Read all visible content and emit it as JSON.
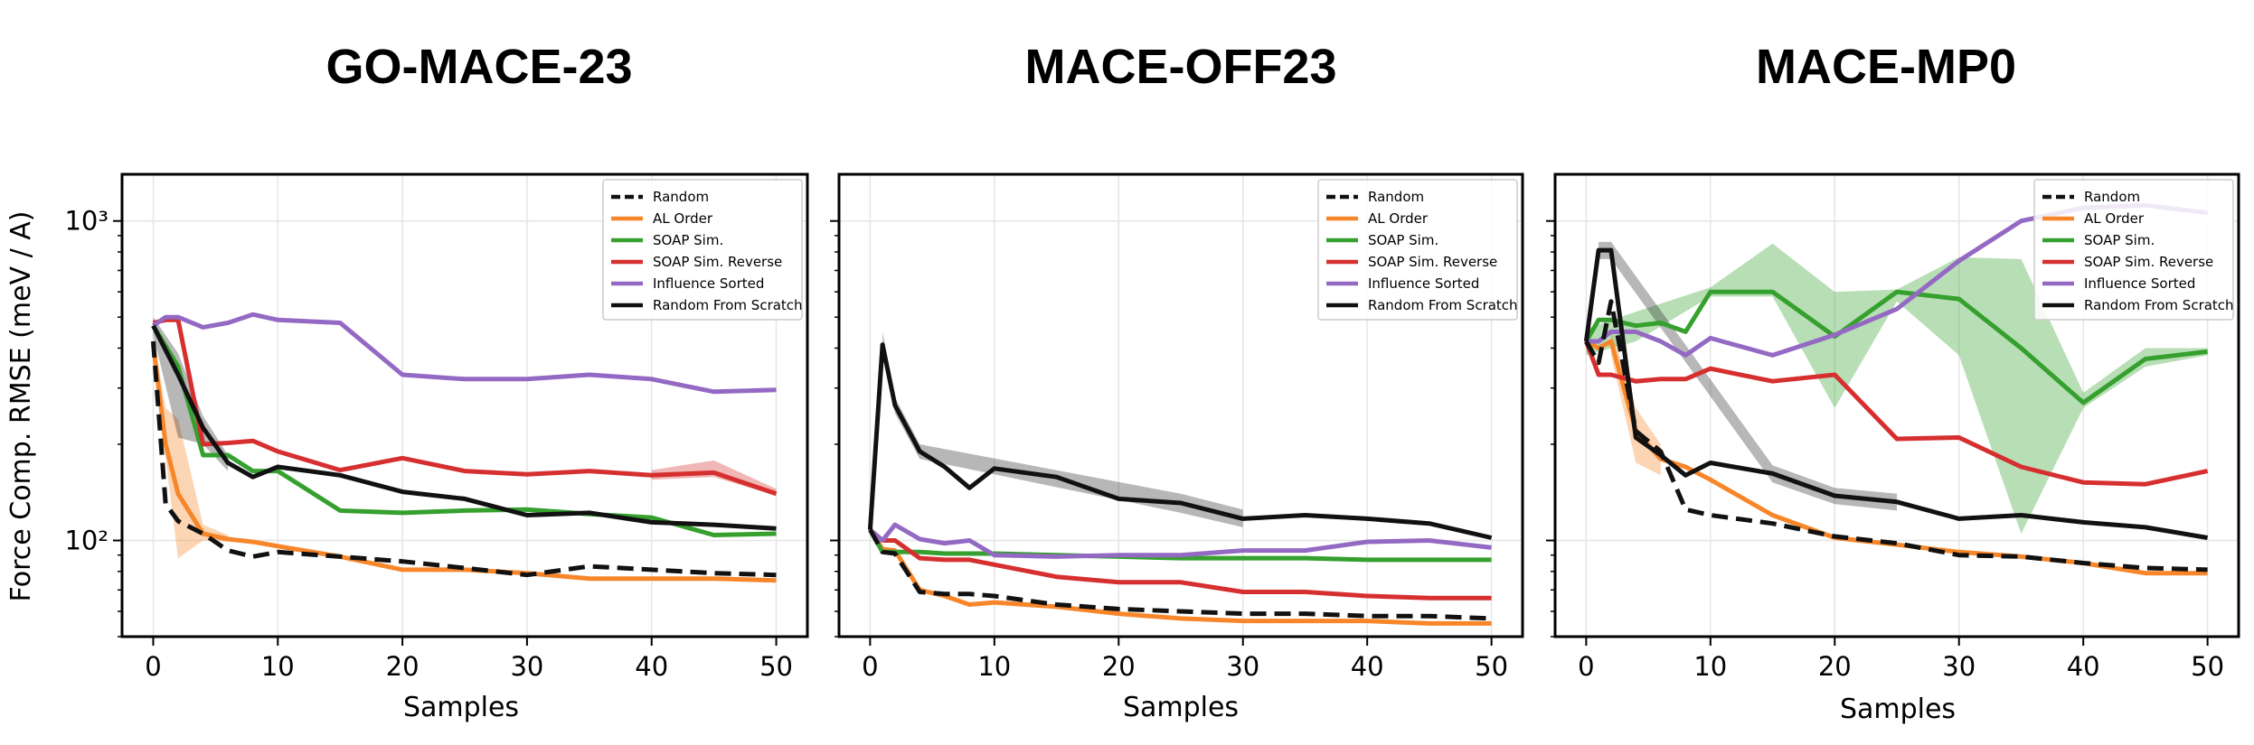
{
  "ylabel": "Force Comp. RMSE (meV / A)",
  "colors": {
    "Random": "#111111",
    "AL Order": "#f7862a",
    "SOAP Sim.": "#35a02e",
    "SOAP Sim. Reverse": "#d62f2f",
    "Influence Sorted": "#9469c4",
    "Random From Scratch": "#111111"
  },
  "chart_data": [
    {
      "type": "line",
      "title": "GO-MACE-23",
      "xlabel": "Samples",
      "ylabel": "Force Comp. RMSE (meV / A)",
      "xlim": [
        -2.5,
        52.5
      ],
      "ylim": [
        50,
        1400
      ],
      "yscale": "log",
      "xticks": [
        0,
        10,
        20,
        30,
        40,
        50
      ],
      "yticks": [
        100,
        1000
      ],
      "ytick_labels": [
        "10²",
        "10³"
      ],
      "grid": true,
      "legend": "top-right",
      "series": [
        {
          "name": "Random",
          "x": [
            0,
            1,
            2,
            4,
            6,
            8,
            10,
            15,
            20,
            25,
            30,
            35,
            40,
            45,
            50
          ],
          "y": [
            420,
            130,
            115,
            105,
            93,
            89,
            92,
            89,
            86,
            82,
            78,
            83,
            81,
            79,
            78
          ]
        },
        {
          "name": "AL Order",
          "x": [
            0,
            1,
            2,
            4,
            6,
            8,
            10,
            15,
            20,
            25,
            30,
            35,
            40,
            45,
            50
          ],
          "y": [
            410,
            200,
            140,
            105,
            101,
            99,
            96,
            89,
            81,
            81,
            79,
            76,
            76,
            76,
            75
          ],
          "band": [
            [
              0,
              1,
              2,
              4,
              6
            ],
            [
              380,
              180,
              88,
              100,
              99
            ],
            [
              440,
              260,
              240,
              112,
              104
            ]
          ]
        },
        {
          "name": "SOAP Sim.",
          "x": [
            0,
            2,
            4,
            6,
            8,
            10,
            15,
            20,
            25,
            30,
            35,
            40,
            45,
            50
          ],
          "y": [
            470,
            350,
            185,
            185,
            165,
            165,
            124,
            122,
            124,
            125,
            121,
            118,
            104,
            105
          ]
        },
        {
          "name": "SOAP Sim. Reverse",
          "x": [
            0,
            1,
            2,
            4,
            6,
            8,
            10,
            15,
            20,
            25,
            30,
            35,
            40,
            45,
            50
          ],
          "y": [
            480,
            490,
            490,
            200,
            202,
            205,
            190,
            166,
            181,
            165,
            161,
            165,
            160,
            163,
            140
          ],
          "band": [
            [
              40,
              45,
              50
            ],
            [
              155,
              158,
              138
            ],
            [
              166,
              178,
              145
            ]
          ]
        },
        {
          "name": "Influence Sorted",
          "x": [
            0,
            1,
            2,
            4,
            6,
            8,
            10,
            15,
            20,
            25,
            30,
            35,
            40,
            45,
            50
          ],
          "y": [
            470,
            500,
            500,
            465,
            480,
            510,
            490,
            480,
            330,
            320,
            320,
            330,
            320,
            292,
            296
          ]
        },
        {
          "name": "Random From Scratch",
          "x": [
            0,
            2,
            4,
            6,
            8,
            10,
            15,
            20,
            25,
            30,
            35,
            40,
            45,
            50
          ],
          "y": [
            470,
            330,
            225,
            175,
            158,
            170,
            160,
            142,
            135,
            120,
            122,
            114,
            112,
            109
          ],
          "band": [
            [
              0,
              2,
              4,
              6
            ],
            [
              440,
              210,
              200,
              165
            ],
            [
              500,
              385,
              245,
              185
            ]
          ]
        }
      ]
    },
    {
      "type": "line",
      "title": "MACE-OFF23",
      "xlabel": "Samples",
      "ylabel": "",
      "xlim": [
        -2.5,
        52.5
      ],
      "ylim": [
        50,
        1400
      ],
      "yscale": "log",
      "xticks": [
        0,
        10,
        20,
        30,
        40,
        50
      ],
      "yticks": [
        100,
        1000
      ],
      "grid": true,
      "legend": "top-right",
      "series": [
        {
          "name": "Random",
          "x": [
            0,
            1,
            2,
            4,
            6,
            8,
            10,
            15,
            20,
            25,
            30,
            35,
            40,
            45,
            50
          ],
          "y": [
            108,
            92,
            91,
            69,
            68,
            68,
            67,
            63,
            61,
            60,
            59,
            59,
            58,
            58,
            57
          ]
        },
        {
          "name": "AL Order",
          "x": [
            0,
            1,
            2,
            4,
            6,
            8,
            10,
            15,
            20,
            25,
            30,
            35,
            40,
            45,
            50
          ],
          "y": [
            108,
            94,
            93,
            70,
            67,
            63,
            64,
            62,
            59,
            57,
            56,
            56,
            56,
            55,
            55
          ]
        },
        {
          "name": "SOAP Sim.",
          "x": [
            0,
            1,
            2,
            4,
            6,
            8,
            10,
            15,
            20,
            25,
            30,
            35,
            40,
            45,
            50
          ],
          "y": [
            108,
            92,
            92,
            92,
            91,
            91,
            91,
            90,
            89,
            88,
            88,
            88,
            87,
            87,
            87
          ]
        },
        {
          "name": "SOAP Sim. Reverse",
          "x": [
            0,
            1,
            2,
            4,
            6,
            8,
            10,
            15,
            20,
            25,
            30,
            35,
            40,
            45,
            50
          ],
          "y": [
            108,
            100,
            100,
            88,
            87,
            87,
            84,
            77,
            74,
            74,
            69,
            69,
            67,
            66,
            66
          ]
        },
        {
          "name": "Influence Sorted",
          "x": [
            0,
            1,
            2,
            4,
            6,
            8,
            10,
            15,
            20,
            25,
            30,
            35,
            40,
            45,
            50
          ],
          "y": [
            108,
            100,
            112,
            101,
            98,
            100,
            90,
            89,
            90,
            90,
            93,
            93,
            99,
            100,
            95
          ]
        },
        {
          "name": "Random From Scratch",
          "x": [
            0,
            1,
            2,
            4,
            6,
            8,
            10,
            15,
            20,
            25,
            30,
            35,
            40,
            45,
            50
          ],
          "y": [
            108,
            410,
            265,
            190,
            170,
            146,
            168,
            158,
            135,
            131,
            117,
            120,
            117,
            113,
            102
          ],
          "band": [
            [
              1,
              2,
              4,
              25,
              30
            ],
            [
              380,
              250,
              180,
              122,
              110
            ],
            [
              450,
              280,
              200,
              140,
              125
            ]
          ]
        }
      ]
    },
    {
      "type": "line",
      "title": "MACE-MP0",
      "xlabel": "Samples",
      "ylabel": "",
      "xlim": [
        -2.5,
        52.5
      ],
      "ylim": [
        50,
        1400
      ],
      "yscale": "log",
      "xticks": [
        0,
        10,
        20,
        30,
        40,
        50
      ],
      "yticks": [
        100,
        1000
      ],
      "grid": true,
      "legend": "top-right",
      "series": [
        {
          "name": "Random",
          "x": [
            0,
            1,
            2,
            4,
            6,
            8,
            10,
            15,
            20,
            25,
            30,
            35,
            40,
            45,
            50
          ],
          "y": [
            420,
            360,
            560,
            220,
            190,
            125,
            120,
            113,
            103,
            98,
            90,
            89,
            85,
            82,
            81
          ]
        },
        {
          "name": "AL Order",
          "x": [
            0,
            1,
            2,
            4,
            6,
            8,
            10,
            15,
            20,
            25,
            30,
            35,
            40,
            45,
            50
          ],
          "y": [
            420,
            400,
            420,
            220,
            180,
            170,
            155,
            120,
            102,
            97,
            92,
            89,
            85,
            79,
            79
          ],
          "band": [
            [
              2,
              4,
              6
            ],
            [
              380,
              175,
              160
            ],
            [
              460,
              260,
              200
            ]
          ]
        },
        {
          "name": "SOAP Sim.",
          "x": [
            0,
            1,
            2,
            4,
            6,
            8,
            10,
            15,
            20,
            25,
            30,
            35,
            40,
            45,
            50
          ],
          "y": [
            420,
            490,
            490,
            470,
            480,
            450,
            600,
            600,
            435,
            600,
            570,
            400,
            270,
            370,
            390
          ],
          "band": [
            [
              0,
              4,
              10,
              15,
              20,
              25,
              30,
              35,
              40,
              45,
              50
            ],
            [
              380,
              420,
              580,
              580,
              260,
              560,
              380,
              105,
              260,
              350,
              380
            ],
            [
              460,
              520,
              620,
              850,
              600,
              610,
              770,
              760,
              290,
              400,
              400
            ]
          ]
        },
        {
          "name": "SOAP Sim. Reverse",
          "x": [
            0,
            1,
            2,
            4,
            6,
            8,
            10,
            15,
            20,
            25,
            30,
            35,
            40,
            45,
            50
          ],
          "y": [
            420,
            330,
            330,
            315,
            320,
            320,
            345,
            315,
            330,
            208,
            210,
            170,
            152,
            150,
            165
          ]
        },
        {
          "name": "Influence Sorted",
          "x": [
            0,
            1,
            2,
            4,
            6,
            8,
            10,
            15,
            20,
            25,
            30,
            35,
            40,
            45,
            50
          ],
          "y": [
            420,
            420,
            450,
            450,
            420,
            380,
            430,
            380,
            440,
            530,
            750,
            1000,
            1100,
            1120,
            1060
          ]
        },
        {
          "name": "Random From Scratch",
          "x": [
            0,
            1,
            2,
            4,
            6,
            8,
            10,
            15,
            20,
            25,
            30,
            35,
            40,
            45,
            50
          ],
          "y": [
            420,
            810,
            810,
            210,
            185,
            160,
            175,
            162,
            138,
            132,
            117,
            120,
            114,
            110,
            102
          ],
          "band": [
            [
              1,
              2,
              15,
              20,
              25
            ],
            [
              760,
              760,
              152,
              130,
              124
            ],
            [
              860,
              860,
              172,
              146,
              140
            ]
          ]
        }
      ]
    }
  ]
}
